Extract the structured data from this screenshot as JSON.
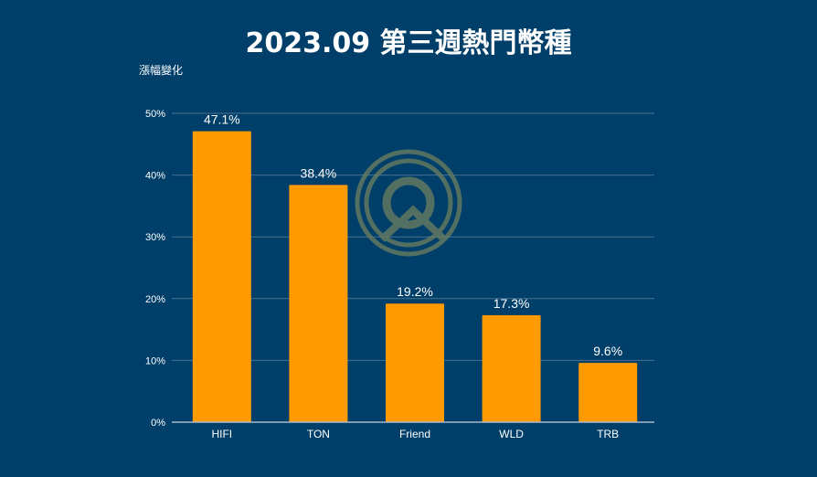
{
  "chart_data": {
    "type": "bar",
    "title": "2023.09 第三週熱門幣種",
    "ylabel": "漲幅變化",
    "xlabel": "",
    "categories": [
      "HIFI",
      "TON",
      "Friend",
      "WLD",
      "TRB"
    ],
    "values": [
      47.1,
      38.4,
      19.2,
      17.3,
      9.6
    ],
    "data_labels": [
      "47.1%",
      "38.4%",
      "19.2%",
      "17.3%",
      "9.6%"
    ],
    "ylim": [
      0,
      50
    ],
    "yticks": [
      0,
      10,
      20,
      30,
      40,
      50
    ],
    "ytick_labels": [
      "0%",
      "10%",
      "20%",
      "30%",
      "40%",
      "50%"
    ],
    "grid": true,
    "legend": "none"
  },
  "colors": {
    "background": "#003f69",
    "bar": "#ff9b00",
    "gridline": "#4a7190",
    "axis": "#aab9c8",
    "watermark": "#6e7f60"
  },
  "watermark": {
    "icon": "logo-watermark-icon"
  }
}
